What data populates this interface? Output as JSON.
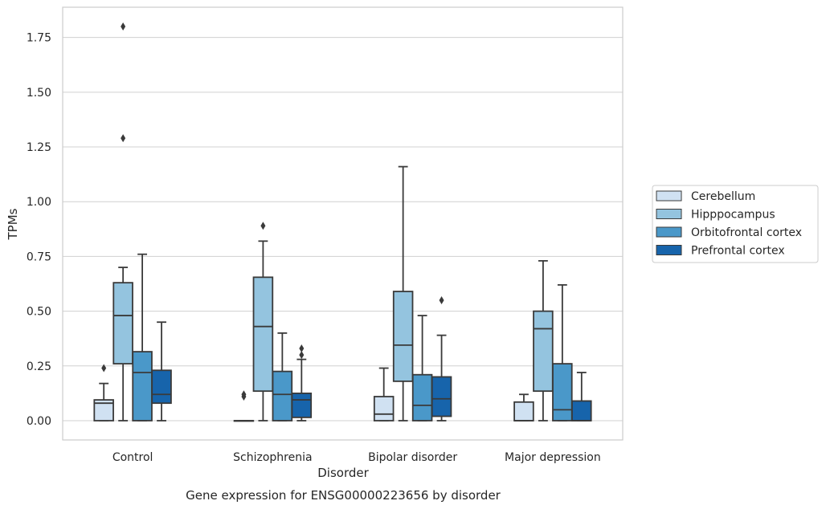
{
  "chart_data": {
    "type": "box",
    "caption": "Gene expression for ENSG00000223656 by disorder",
    "xlabel": "Disorder",
    "ylabel": "TPMs",
    "ylim": [
      -0.088,
      1.888
    ],
    "yticks": [
      0.0,
      0.25,
      0.5,
      0.75,
      1.0,
      1.25,
      1.5,
      1.75
    ],
    "ytick_labels": [
      "0.00",
      "0.25",
      "0.50",
      "0.75",
      "1.00",
      "1.25",
      "1.50",
      "1.75"
    ],
    "grid": "horizontal",
    "legend_position": "right",
    "categories": [
      "Control",
      "Schizophrenia",
      "Bipolar disorder",
      "Major depression"
    ],
    "series": [
      {
        "name": "Cerebellum",
        "color": "#d0e1f2",
        "boxes": [
          {
            "whisker_low": 0.0,
            "q1": 0.0,
            "median": 0.08,
            "q3": 0.095,
            "whisker_high": 0.17,
            "outliers": [
              0.24
            ]
          },
          {
            "whisker_low": 0.0,
            "q1": 0.0,
            "median": 0.0,
            "q3": 0.0,
            "whisker_high": 0.0,
            "outliers": [
              0.11,
              0.12
            ]
          },
          {
            "whisker_low": 0.0,
            "q1": 0.0,
            "median": 0.03,
            "q3": 0.11,
            "whisker_high": 0.24,
            "outliers": []
          },
          {
            "whisker_low": 0.0,
            "q1": 0.0,
            "median": 0.0,
            "q3": 0.085,
            "whisker_high": 0.12,
            "outliers": []
          }
        ]
      },
      {
        "name": "Hipppocampus",
        "color": "#94c4df",
        "boxes": [
          {
            "whisker_low": 0.0,
            "q1": 0.26,
            "median": 0.48,
            "q3": 0.63,
            "whisker_high": 0.7,
            "outliers": [
              1.29,
              1.8
            ]
          },
          {
            "whisker_low": 0.0,
            "q1": 0.135,
            "median": 0.43,
            "q3": 0.655,
            "whisker_high": 0.82,
            "outliers": [
              0.89
            ]
          },
          {
            "whisker_low": 0.0,
            "q1": 0.18,
            "median": 0.345,
            "q3": 0.59,
            "whisker_high": 1.16,
            "outliers": []
          },
          {
            "whisker_low": 0.0,
            "q1": 0.135,
            "median": 0.42,
            "q3": 0.5,
            "whisker_high": 0.73,
            "outliers": []
          }
        ]
      },
      {
        "name": "Orbitofrontal cortex",
        "color": "#4a98c9",
        "boxes": [
          {
            "whisker_low": 0.0,
            "q1": 0.0,
            "median": 0.22,
            "q3": 0.315,
            "whisker_high": 0.76,
            "outliers": []
          },
          {
            "whisker_low": 0.0,
            "q1": 0.0,
            "median": 0.12,
            "q3": 0.225,
            "whisker_high": 0.4,
            "outliers": []
          },
          {
            "whisker_low": 0.0,
            "q1": 0.0,
            "median": 0.07,
            "q3": 0.21,
            "whisker_high": 0.48,
            "outliers": []
          },
          {
            "whisker_low": 0.0,
            "q1": 0.0,
            "median": 0.05,
            "q3": 0.26,
            "whisker_high": 0.62,
            "outliers": []
          }
        ]
      },
      {
        "name": "Prefrontal cortex",
        "color": "#1764ab",
        "boxes": [
          {
            "whisker_low": 0.0,
            "q1": 0.08,
            "median": 0.12,
            "q3": 0.23,
            "whisker_high": 0.45,
            "outliers": []
          },
          {
            "whisker_low": 0.0,
            "q1": 0.015,
            "median": 0.095,
            "q3": 0.125,
            "whisker_high": 0.28,
            "outliers": [
              0.3,
              0.33
            ]
          },
          {
            "whisker_low": 0.0,
            "q1": 0.02,
            "median": 0.1,
            "q3": 0.2,
            "whisker_high": 0.39,
            "outliers": [
              0.55
            ]
          },
          {
            "whisker_low": 0.0,
            "q1": 0.0,
            "median": 0.0,
            "q3": 0.09,
            "whisker_high": 0.22,
            "outliers": []
          }
        ]
      }
    ]
  }
}
